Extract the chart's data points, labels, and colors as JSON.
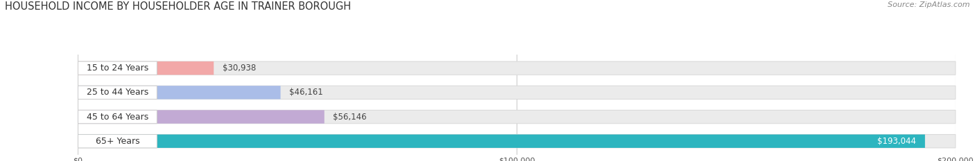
{
  "title": "HOUSEHOLD INCOME BY HOUSEHOLDER AGE IN TRAINER BOROUGH",
  "source": "Source: ZipAtlas.com",
  "categories": [
    "15 to 24 Years",
    "25 to 44 Years",
    "45 to 64 Years",
    "65+ Years"
  ],
  "values": [
    30938,
    46161,
    56146,
    193044
  ],
  "bar_colors": [
    "#f2a8a8",
    "#aabde8",
    "#c2aad4",
    "#2db5bf"
  ],
  "label_colors": [
    "#555555",
    "#555555",
    "#555555",
    "#ffffff"
  ],
  "bar_bg_color": "#ebebeb",
  "bar_bg_edge": "#d8d8d8",
  "xlim": [
    0,
    200000
  ],
  "xticks": [
    0,
    100000,
    200000
  ],
  "xtick_labels": [
    "$0",
    "$100,000",
    "$200,000"
  ],
  "title_fontsize": 10.5,
  "source_fontsize": 8,
  "value_fontsize": 8.5,
  "category_fontsize": 9,
  "background_color": "#ffffff",
  "grid_color": "#cccccc",
  "pill_bg": "#ffffff",
  "pill_edge": "#cccccc"
}
